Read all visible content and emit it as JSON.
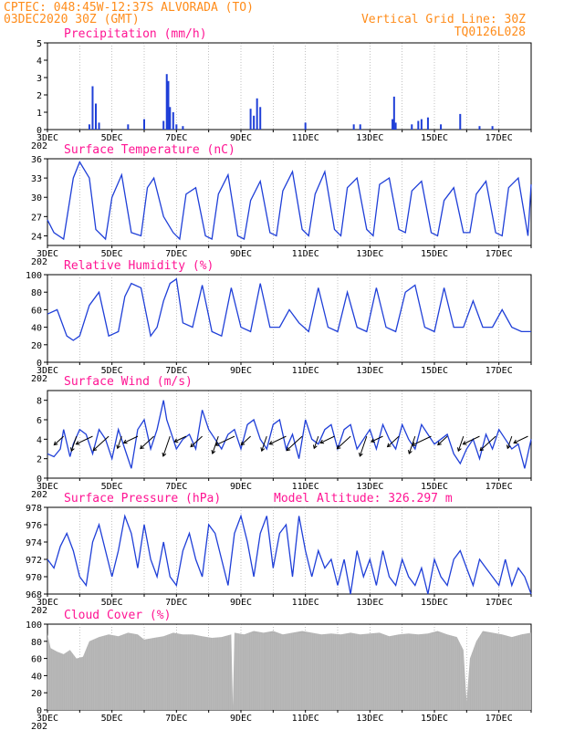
{
  "header": {
    "line1": "CPTEC:   048:45W-12:37S  ALVORADA (TO)",
    "line2": "03DEC2020 30Z (GMT)",
    "right1": "Vertical Grid Line: 30Z",
    "right2": "TQ0126L028"
  },
  "x_ticks": [
    "3DEC",
    "5DEC",
    "7DEC",
    "9DEC",
    "11DEC",
    "13DEC",
    "15DEC",
    "17DEC"
  ],
  "x_sub": "202",
  "colors": {
    "line": "#1f3fd8",
    "cloud": "#b3b3b3",
    "header": "#ff8c1a",
    "title": "#ff1493"
  },
  "chart_data": [
    {
      "type": "bar",
      "title": "Precipitation (mm/h)",
      "ylim": [
        0,
        5
      ],
      "yticks": [
        0,
        1,
        2,
        3,
        4,
        5
      ],
      "x_day_range": [
        3.0,
        18.0
      ],
      "x": [
        4.3,
        4.4,
        4.5,
        4.6,
        5.5,
        6.0,
        6.6,
        6.7,
        6.75,
        6.8,
        6.9,
        7.0,
        7.2,
        9.3,
        9.4,
        9.5,
        9.6,
        11.0,
        12.5,
        12.7,
        13.7,
        13.75,
        13.8,
        14.3,
        14.5,
        14.6,
        14.8,
        15.2,
        15.8,
        16.4,
        16.8
      ],
      "values": [
        0.3,
        2.5,
        1.5,
        0.4,
        0.3,
        0.6,
        0.5,
        3.2,
        2.8,
        1.3,
        1.0,
        0.3,
        0.2,
        1.2,
        0.8,
        1.8,
        1.3,
        0.4,
        0.3,
        0.3,
        0.6,
        1.9,
        0.4,
        0.3,
        0.5,
        0.6,
        0.7,
        0.3,
        0.9,
        0.2,
        0.2
      ]
    },
    {
      "type": "line",
      "title": "Surface Temperature (nC)",
      "ylim": [
        22.5,
        36
      ],
      "yticks": [
        24,
        27,
        30,
        33,
        36
      ],
      "x_day_range": [
        3.0,
        18.0
      ],
      "x": [
        3.0,
        3.2,
        3.5,
        3.8,
        4.0,
        4.3,
        4.5,
        4.8,
        5.0,
        5.3,
        5.6,
        5.9,
        6.1,
        6.3,
        6.6,
        6.9,
        7.1,
        7.3,
        7.6,
        7.9,
        8.1,
        8.3,
        8.6,
        8.9,
        9.1,
        9.3,
        9.6,
        9.9,
        10.1,
        10.3,
        10.6,
        10.9,
        11.1,
        11.3,
        11.6,
        11.9,
        12.1,
        12.3,
        12.6,
        12.9,
        13.1,
        13.3,
        13.6,
        13.9,
        14.1,
        14.3,
        14.6,
        14.9,
        15.1,
        15.3,
        15.6,
        15.9,
        16.1,
        16.3,
        16.6,
        16.9,
        17.1,
        17.3,
        17.6,
        17.9,
        18.0
      ],
      "values": [
        26.5,
        24.5,
        23.5,
        33.0,
        35.5,
        33.0,
        25.0,
        23.5,
        30.0,
        33.5,
        24.5,
        24.0,
        31.5,
        33.0,
        27.0,
        24.5,
        23.5,
        30.5,
        31.5,
        24.0,
        23.5,
        30.5,
        33.5,
        24.0,
        23.5,
        29.5,
        32.5,
        24.5,
        24.0,
        31.0,
        34.0,
        25.0,
        24.0,
        30.5,
        34.0,
        25.0,
        24.0,
        31.5,
        33.0,
        25.0,
        24.0,
        32.0,
        33.0,
        25.0,
        24.5,
        31.0,
        32.5,
        24.5,
        24.0,
        29.5,
        31.5,
        24.5,
        24.5,
        30.5,
        32.5,
        24.5,
        24.0,
        31.5,
        33.0,
        24.0,
        32.0
      ]
    },
    {
      "type": "line",
      "title": "Relative Humidity (%)",
      "ylim": [
        0,
        100
      ],
      "yticks": [
        0,
        20,
        40,
        60,
        80,
        100
      ],
      "x_day_range": [
        3.0,
        18.0
      ],
      "x": [
        3.0,
        3.3,
        3.6,
        3.8,
        4.0,
        4.3,
        4.6,
        4.9,
        5.2,
        5.4,
        5.6,
        5.9,
        6.2,
        6.4,
        6.6,
        6.8,
        7.0,
        7.2,
        7.5,
        7.8,
        8.1,
        8.4,
        8.7,
        9.0,
        9.3,
        9.6,
        9.9,
        10.2,
        10.5,
        10.8,
        11.1,
        11.4,
        11.7,
        12.0,
        12.3,
        12.6,
        12.9,
        13.2,
        13.5,
        13.8,
        14.1,
        14.4,
        14.7,
        15.0,
        15.3,
        15.6,
        15.9,
        16.2,
        16.5,
        16.8,
        17.1,
        17.4,
        17.7,
        18.0
      ],
      "values": [
        55,
        60,
        30,
        25,
        30,
        65,
        80,
        30,
        35,
        75,
        90,
        85,
        30,
        40,
        70,
        90,
        95,
        45,
        40,
        88,
        35,
        30,
        85,
        40,
        35,
        90,
        40,
        40,
        60,
        45,
        35,
        85,
        40,
        35,
        80,
        40,
        35,
        85,
        40,
        35,
        80,
        88,
        40,
        35,
        85,
        40,
        40,
        70,
        40,
        40,
        60,
        40,
        35,
        35
      ]
    },
    {
      "type": "line",
      "title": "Surface Wind (m/s)",
      "ylim": [
        0,
        9
      ],
      "yticks": [
        0,
        2,
        4,
        6,
        8
      ],
      "x_day_range": [
        3.0,
        18.0
      ],
      "x": [
        3.0,
        3.2,
        3.4,
        3.5,
        3.7,
        3.8,
        4.0,
        4.2,
        4.4,
        4.6,
        4.8,
        5.0,
        5.2,
        5.4,
        5.6,
        5.8,
        6.0,
        6.2,
        6.4,
        6.6,
        6.7,
        6.8,
        7.0,
        7.2,
        7.4,
        7.6,
        7.8,
        8.0,
        8.2,
        8.4,
        8.6,
        8.8,
        9.0,
        9.2,
        9.4,
        9.6,
        9.8,
        10.0,
        10.2,
        10.4,
        10.6,
        10.8,
        11.0,
        11.2,
        11.4,
        11.6,
        11.8,
        12.0,
        12.2,
        12.4,
        12.6,
        12.8,
        13.0,
        13.2,
        13.4,
        13.6,
        13.8,
        14.0,
        14.2,
        14.4,
        14.6,
        14.8,
        15.0,
        15.2,
        15.4,
        15.6,
        15.8,
        16.0,
        16.2,
        16.4,
        16.6,
        16.8,
        17.0,
        17.2,
        17.4,
        17.6,
        17.8,
        18.0
      ],
      "values": [
        2.5,
        2.2,
        3.0,
        5.0,
        2.2,
        3.5,
        5.0,
        4.5,
        2.5,
        5.0,
        4.0,
        2.0,
        5.0,
        3.0,
        1.0,
        5.0,
        6.0,
        3.0,
        5.0,
        8.0,
        6.0,
        5.0,
        3.0,
        4.0,
        4.5,
        3.0,
        7.0,
        5.0,
        4.0,
        3.0,
        4.5,
        5.0,
        3.0,
        5.5,
        6.0,
        4.0,
        3.0,
        5.5,
        6.0,
        3.0,
        4.5,
        2.0,
        6.0,
        4.0,
        3.5,
        5.0,
        5.5,
        3.0,
        5.0,
        5.5,
        3.0,
        4.0,
        5.0,
        3.0,
        5.5,
        4.0,
        3.0,
        5.5,
        4.0,
        3.0,
        5.5,
        4.5,
        3.5,
        4.0,
        4.5,
        2.5,
        1.5,
        3.0,
        4.0,
        2.0,
        4.5,
        3.0,
        5.0,
        4.0,
        3.0,
        3.5,
        1.0,
        4.0
      ]
    },
    {
      "type": "line",
      "title": "Surface Pressure (hPa)",
      "annotation": "Model Altitude: 326.297 m",
      "ylim": [
        968,
        978
      ],
      "yticks": [
        968,
        970,
        972,
        974,
        976,
        978
      ],
      "x_day_range": [
        3.0,
        18.0
      ],
      "x": [
        3.0,
        3.2,
        3.4,
        3.6,
        3.8,
        4.0,
        4.2,
        4.4,
        4.6,
        4.8,
        5.0,
        5.2,
        5.4,
        5.6,
        5.8,
        6.0,
        6.2,
        6.4,
        6.6,
        6.8,
        7.0,
        7.2,
        7.4,
        7.6,
        7.8,
        8.0,
        8.2,
        8.4,
        8.6,
        8.8,
        9.0,
        9.2,
        9.4,
        9.6,
        9.8,
        10.0,
        10.2,
        10.4,
        10.6,
        10.8,
        11.0,
        11.2,
        11.4,
        11.6,
        11.8,
        12.0,
        12.2,
        12.4,
        12.6,
        12.8,
        13.0,
        13.2,
        13.4,
        13.6,
        13.8,
        14.0,
        14.2,
        14.4,
        14.6,
        14.8,
        15.0,
        15.2,
        15.4,
        15.6,
        15.8,
        16.0,
        16.2,
        16.4,
        16.6,
        16.8,
        17.0,
        17.2,
        17.4,
        17.6,
        17.8,
        18.0
      ],
      "values": [
        972,
        971,
        973.5,
        975,
        973,
        970,
        969,
        974,
        976,
        973,
        970,
        973,
        977,
        975,
        971,
        976,
        972,
        970,
        974,
        970,
        969,
        973,
        975,
        972,
        970,
        976,
        975,
        972,
        969,
        975,
        977,
        974,
        970,
        975,
        977,
        971,
        975,
        976,
        970,
        977,
        973,
        970,
        973,
        971,
        972,
        969,
        972,
        968,
        973,
        970,
        972,
        969,
        973,
        970,
        969,
        972,
        970,
        969,
        971,
        968,
        972,
        970,
        969,
        972,
        973,
        971,
        969,
        972,
        971,
        970,
        969,
        972,
        969,
        971,
        970,
        968
      ]
    },
    {
      "type": "area",
      "title": "Cloud Cover (%)",
      "ylim": [
        0,
        100
      ],
      "yticks": [
        0,
        20,
        40,
        60,
        80,
        100
      ],
      "x_day_range": [
        3.0,
        18.0
      ],
      "x": [
        3.0,
        3.1,
        3.3,
        3.5,
        3.7,
        3.9,
        4.1,
        4.3,
        4.6,
        4.9,
        5.2,
        5.5,
        5.8,
        6.0,
        6.3,
        6.6,
        6.9,
        7.2,
        7.5,
        7.8,
        8.1,
        8.4,
        8.7,
        8.75,
        8.8,
        9.1,
        9.4,
        9.7,
        10.0,
        10.3,
        10.6,
        10.9,
        11.2,
        11.5,
        11.8,
        12.1,
        12.4,
        12.7,
        13.0,
        13.3,
        13.6,
        13.9,
        14.2,
        14.5,
        14.8,
        15.1,
        15.4,
        15.7,
        15.9,
        16.0,
        16.1,
        16.3,
        16.5,
        16.8,
        17.1,
        17.4,
        17.7,
        18.0
      ],
      "values": [
        88,
        72,
        68,
        65,
        70,
        60,
        62,
        80,
        85,
        88,
        86,
        90,
        88,
        82,
        84,
        86,
        90,
        88,
        88,
        86,
        84,
        85,
        88,
        5,
        90,
        88,
        92,
        90,
        92,
        88,
        90,
        92,
        90,
        88,
        89,
        88,
        90,
        88,
        89,
        90,
        86,
        88,
        89,
        88,
        89,
        92,
        88,
        85,
        70,
        10,
        60,
        80,
        92,
        90,
        88,
        85,
        88,
        90
      ]
    }
  ]
}
